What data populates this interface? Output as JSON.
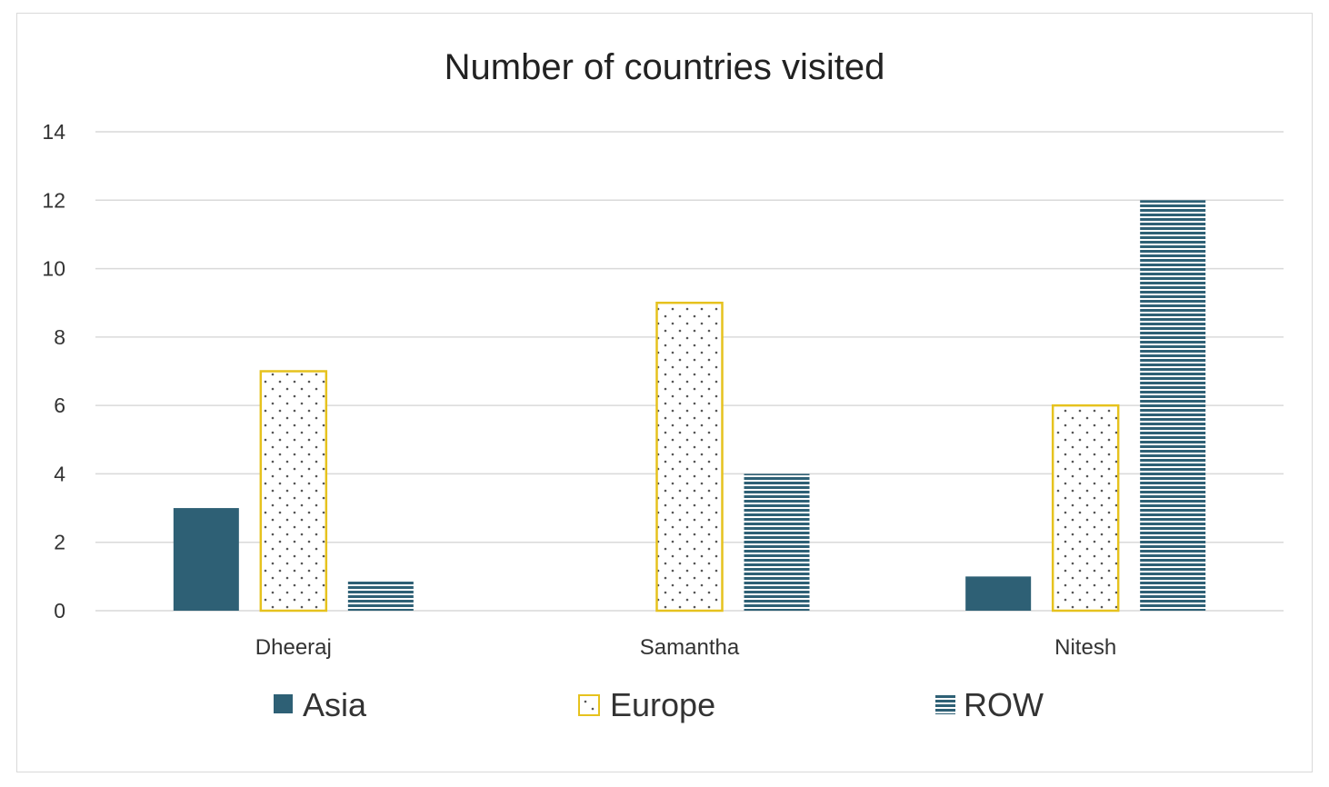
{
  "chart_data": {
    "type": "bar",
    "title": "Number of countries visited",
    "xlabel": "",
    "ylabel": "",
    "categories": [
      "Dheeraj",
      "Samantha",
      "Nitesh"
    ],
    "series": [
      {
        "name": "Asia",
        "values": [
          3,
          0,
          1
        ],
        "color": "#2e6075",
        "pattern": "solid"
      },
      {
        "name": "Europe",
        "values": [
          7,
          9,
          6
        ],
        "color": "#e6c21e",
        "pattern": "dots"
      },
      {
        "name": "ROW",
        "values": [
          0.9,
          4,
          12
        ],
        "color": "#2e6075",
        "pattern": "horizontal-lines"
      }
    ],
    "ylim": [
      0,
      14
    ],
    "yticks": [
      0,
      2,
      4,
      6,
      8,
      10,
      12,
      14
    ],
    "grid": true,
    "legend_position": "bottom"
  }
}
